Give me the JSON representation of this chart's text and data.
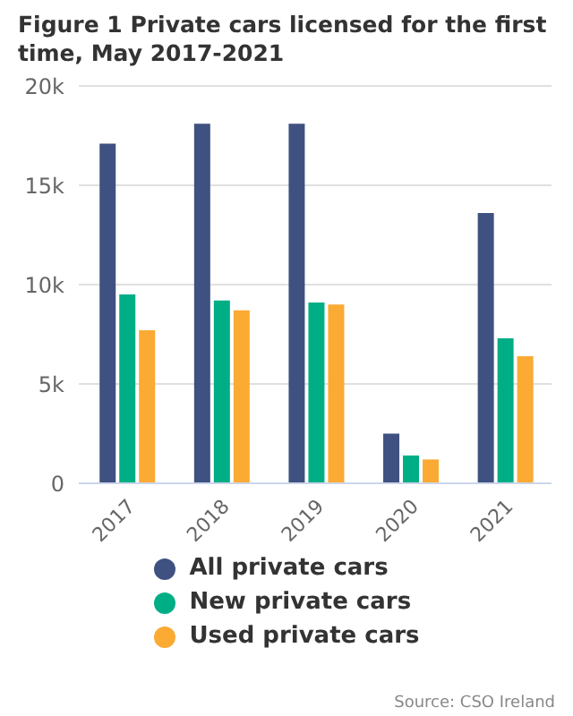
{
  "chart_data": {
    "type": "bar",
    "title": "Figure 1 Private cars licensed for the first time, May 2017-2021",
    "categories": [
      "2017",
      "2018",
      "2019",
      "2020",
      "2021"
    ],
    "series": [
      {
        "name": "All private cars",
        "color": "#3f5180",
        "values": [
          17100,
          18100,
          18100,
          2500,
          13600
        ]
      },
      {
        "name": "New private cars",
        "color": "#00ae86",
        "values": [
          9500,
          9200,
          9100,
          1400,
          7300
        ]
      },
      {
        "name": "Used private cars",
        "color": "#fbaa34",
        "values": [
          7700,
          8700,
          9000,
          1200,
          6400
        ]
      }
    ],
    "ylim": [
      0,
      20000
    ],
    "yticks": [
      {
        "value": 0,
        "label": "0"
      },
      {
        "value": 5000,
        "label": "5k"
      },
      {
        "value": 10000,
        "label": "10k"
      },
      {
        "value": 15000,
        "label": "15k"
      },
      {
        "value": 20000,
        "label": "20k"
      }
    ],
    "grid": "y",
    "legend": "bottom",
    "annotations": [
      "Source: CSO Ireland"
    ]
  }
}
